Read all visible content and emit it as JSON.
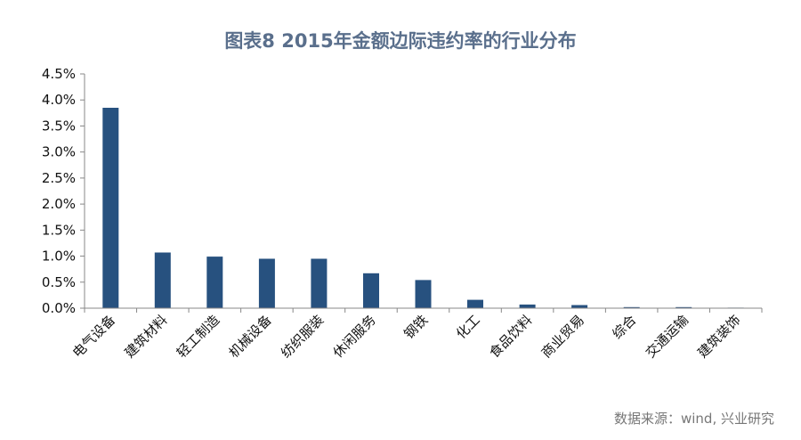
{
  "chart_data": {
    "type": "bar",
    "title": "图表8  2015年金额边际违约率的行业分布",
    "xlabel": "",
    "ylabel": "",
    "categories": [
      "电气设备",
      "建筑材料",
      "轻工制造",
      "机械设备",
      "纺织服装",
      "休闲服务",
      "钢铁",
      "化工",
      "食品饮料",
      "商业贸易",
      "综合",
      "交通运输",
      "建筑装饰"
    ],
    "values": [
      3.85,
      1.07,
      0.99,
      0.95,
      0.95,
      0.67,
      0.54,
      0.16,
      0.07,
      0.06,
      0.02,
      0.02,
      0.01
    ],
    "ylim": [
      0,
      4.5
    ],
    "yticks": [
      "0.0%",
      "0.5%",
      "1.0%",
      "1.5%",
      "2.0%",
      "2.5%",
      "3.0%",
      "3.5%",
      "4.0%",
      "4.5%"
    ],
    "grid": false,
    "bar_color": "#27517f",
    "source": "数据来源：wind, 兴业研究"
  }
}
